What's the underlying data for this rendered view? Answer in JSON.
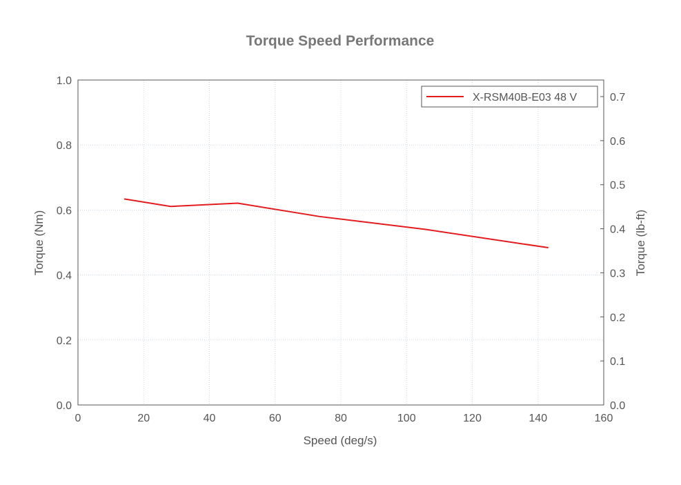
{
  "chart_data": {
    "type": "line",
    "title": "Torque Speed Performance",
    "xlabel": "Speed (deg/s)",
    "ylabel": "Torque (Nm)",
    "y2label": "Torque (lb-ft)",
    "xlim": [
      0,
      160
    ],
    "ylim": [
      0,
      1.0
    ],
    "y2lim": [
      0,
      0.7376
    ],
    "xticks": [
      0,
      20,
      40,
      60,
      80,
      100,
      120,
      140,
      160
    ],
    "yticks": [
      0.0,
      0.2,
      0.4,
      0.6,
      0.8,
      1.0
    ],
    "y2ticks": [
      0.0,
      0.1,
      0.2,
      0.3,
      0.4,
      0.5,
      0.6,
      0.7
    ],
    "grid": true,
    "legend_position": "top-right",
    "series": [
      {
        "name": "X-RSM40B-E03 48 V",
        "color": "#e41a1c",
        "x": [
          14.1,
          28.2,
          48.6,
          73.5,
          106,
          143.1
        ],
        "y": [
          0.634,
          0.611,
          0.621,
          0.58,
          0.54,
          0.484
        ]
      }
    ]
  }
}
